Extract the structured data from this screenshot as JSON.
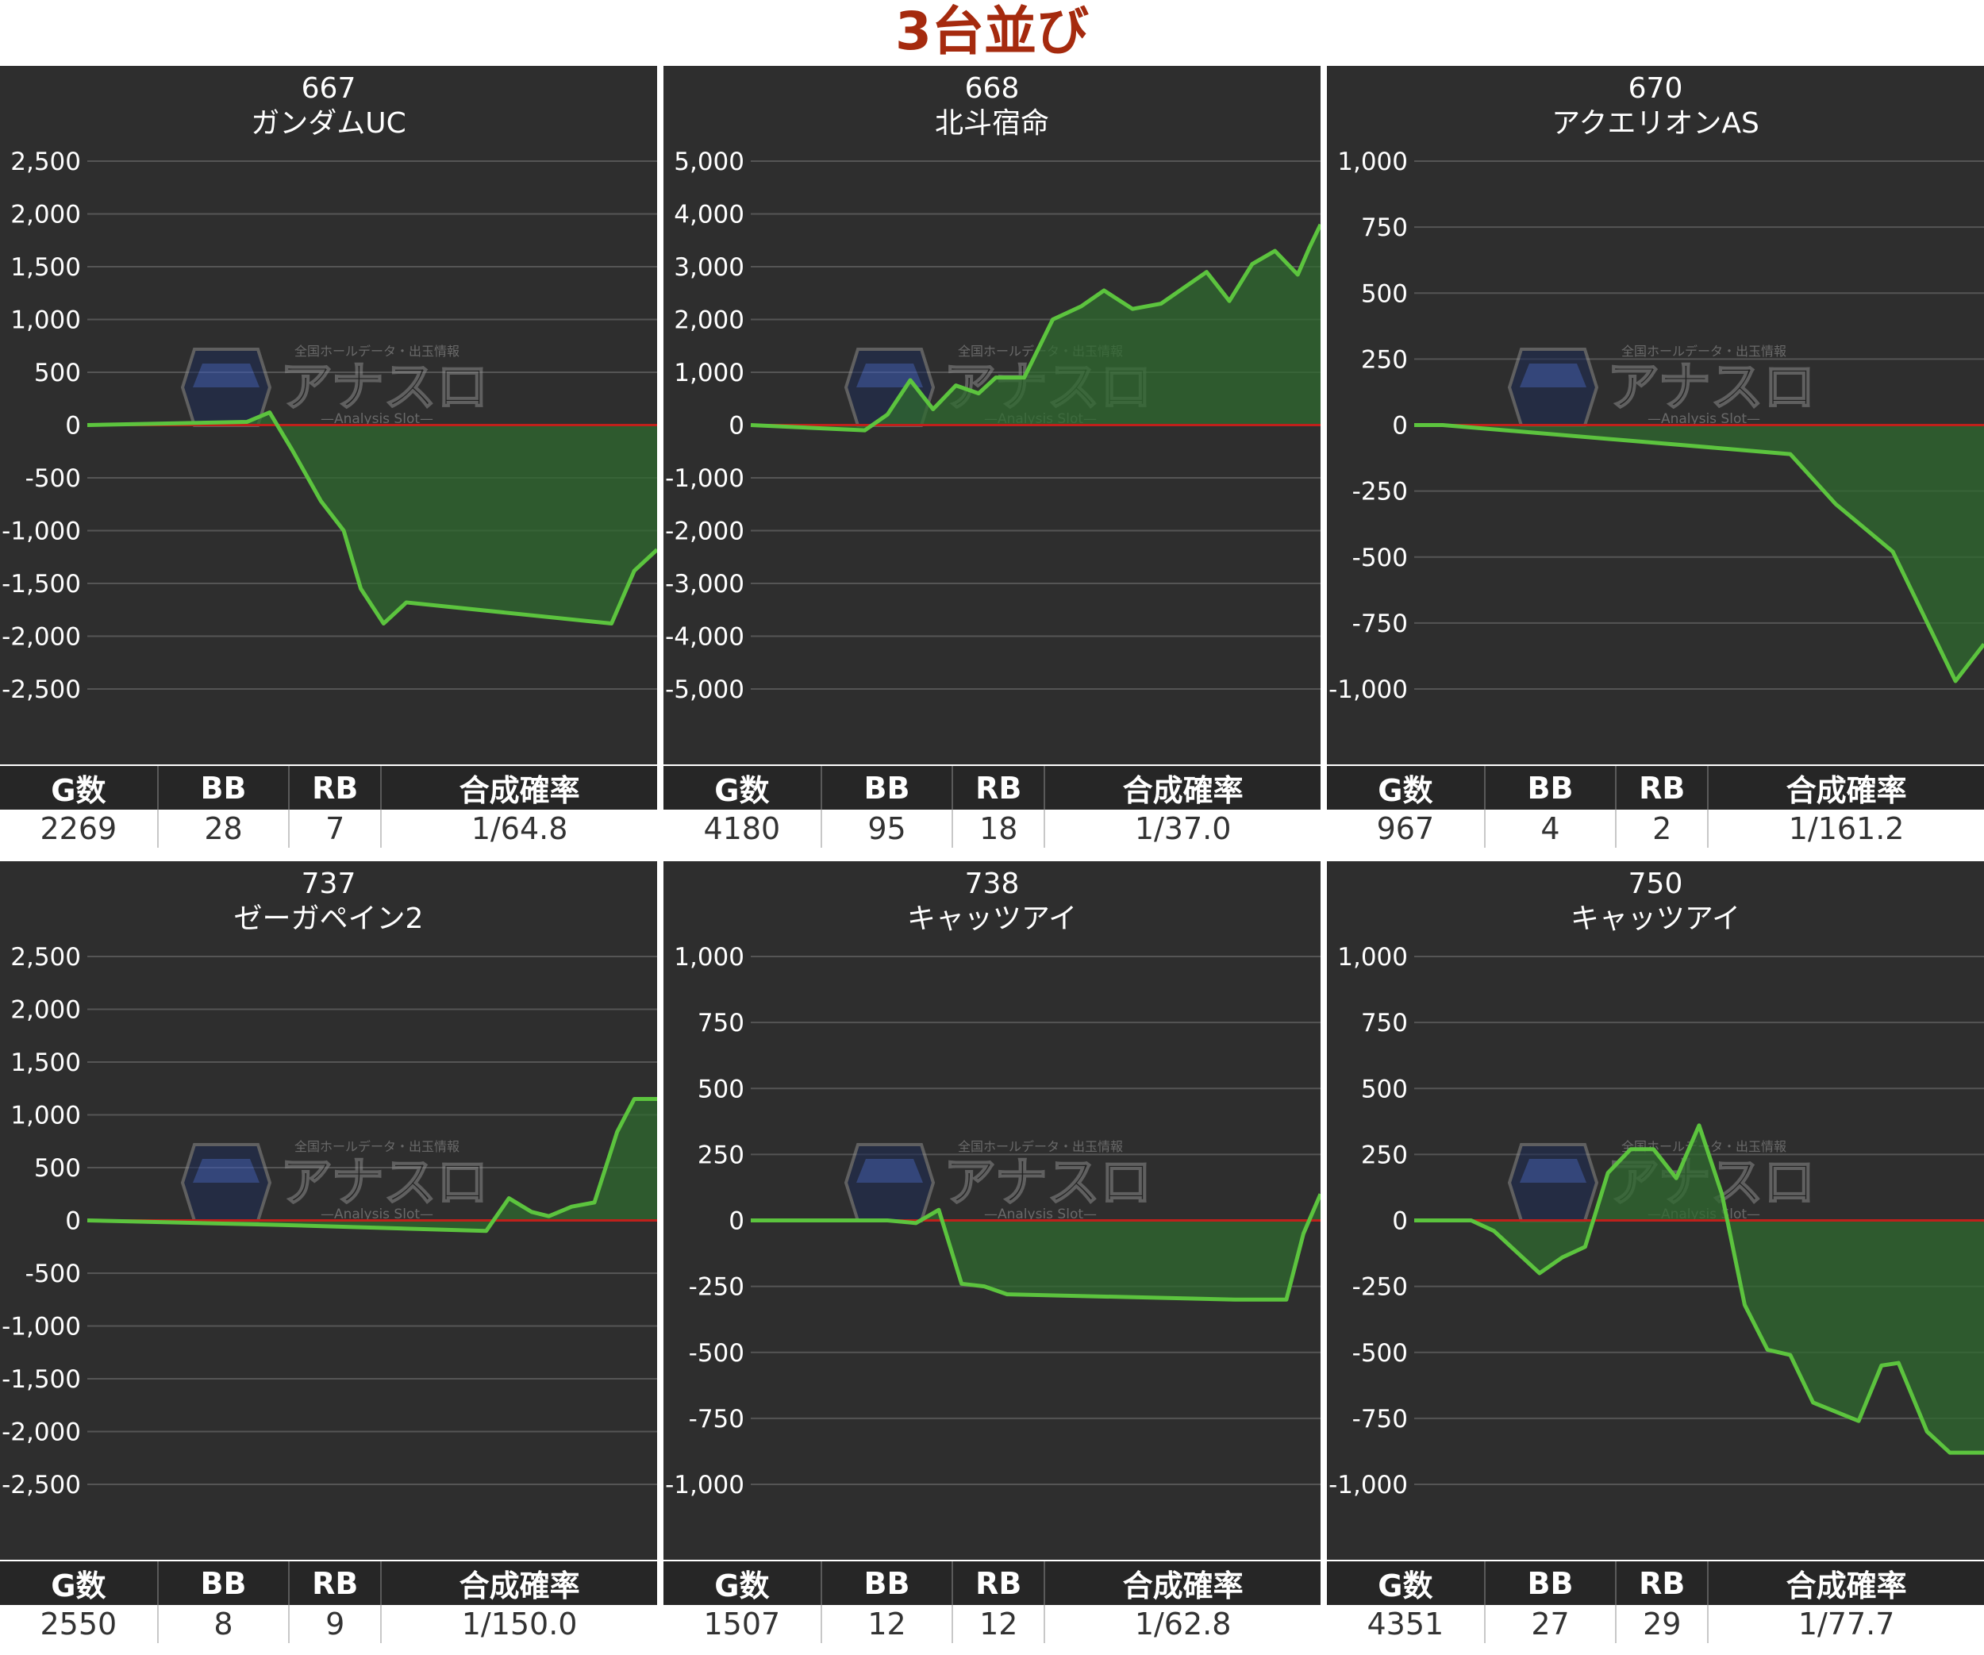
{
  "page": {
    "title": "3台並び"
  },
  "watermark": {
    "brand": "アナスロ",
    "tagline": "全国ホールデータ・出玉情報",
    "sub": "—Analysis Slot—"
  },
  "colors": {
    "background": "#2e2e2e",
    "grid": "#555555",
    "zero_line": "#c0201b",
    "line": "#5cc43e",
    "fill": "#2f6a2f",
    "title": "#a52a0e"
  },
  "table_headers": [
    "G数",
    "BB",
    "RB",
    "合成確率"
  ],
  "chart_data": [
    {
      "type": "area",
      "machine_no": "667",
      "machine_name": "ガンダムUC",
      "ylim": [
        -2500,
        2500
      ],
      "yticks": [
        2500,
        2000,
        1500,
        1000,
        500,
        0,
        -500,
        -1000,
        -1500,
        -2000,
        -2500
      ],
      "tick_labels": [
        "2,500",
        "2,000",
        "1,500",
        "1,000",
        "500",
        "0",
        "-500",
        "-1,000",
        "-1,500",
        "-2,000",
        "-2,500"
      ],
      "grid": true,
      "x": [
        0,
        0.28,
        0.32,
        0.36,
        0.41,
        0.45,
        0.48,
        0.52,
        0.56,
        0.92,
        0.96,
        1.0
      ],
      "y": [
        0,
        30,
        120,
        -240,
        -720,
        -1000,
        -1550,
        -1880,
        -1680,
        -1880,
        -1380,
        -1180
      ],
      "stats": {
        "games": "2269",
        "bb": "28",
        "rb": "7",
        "prob": "1/64.8"
      }
    },
    {
      "type": "area",
      "machine_no": "668",
      "machine_name": "北斗宿命",
      "ylim": [
        -5000,
        5000
      ],
      "yticks": [
        5000,
        4000,
        3000,
        2000,
        1000,
        0,
        -1000,
        -2000,
        -3000,
        -4000,
        -5000
      ],
      "tick_labels": [
        "5,000",
        "4,000",
        "3,000",
        "2,000",
        "1,000",
        "0",
        "-1,000",
        "-2,000",
        "-3,000",
        "-4,000",
        "-5,000"
      ],
      "grid": true,
      "x": [
        0,
        0.2,
        0.24,
        0.28,
        0.32,
        0.36,
        0.4,
        0.43,
        0.48,
        0.53,
        0.58,
        0.62,
        0.67,
        0.72,
        0.76,
        0.8,
        0.84,
        0.88,
        0.92,
        0.96,
        0.98,
        1.0
      ],
      "y": [
        0,
        -100,
        200,
        850,
        300,
        750,
        600,
        900,
        900,
        2000,
        2250,
        2550,
        2200,
        2300,
        2600,
        2900,
        2350,
        3050,
        3300,
        2850,
        3350,
        3800
      ],
      "stats": {
        "games": "4180",
        "bb": "95",
        "rb": "18",
        "prob": "1/37.0"
      }
    },
    {
      "type": "area",
      "machine_no": "670",
      "machine_name": "アクエリオンAS",
      "ylim": [
        -1000,
        1000
      ],
      "yticks": [
        1000,
        750,
        500,
        250,
        0,
        -250,
        -500,
        -750,
        -1000
      ],
      "tick_labels": [
        "1,000",
        "750",
        "500",
        "250",
        "0",
        "-250",
        "-500",
        "-750",
        "-1,000"
      ],
      "grid": true,
      "x": [
        0,
        0.05,
        0.66,
        0.74,
        0.84,
        0.95,
        1.0
      ],
      "y": [
        0,
        0,
        -110,
        -300,
        -480,
        -970,
        -830
      ],
      "stats": {
        "games": "967",
        "bb": "4",
        "rb": "2",
        "prob": "1/161.2"
      }
    },
    {
      "type": "area",
      "machine_no": "737",
      "machine_name": "ゼーガペイン2",
      "ylim": [
        -2500,
        2500
      ],
      "yticks": [
        2500,
        2000,
        1500,
        1000,
        500,
        0,
        -500,
        -1000,
        -1500,
        -2000,
        -2500
      ],
      "tick_labels": [
        "2,500",
        "2,000",
        "1,500",
        "1,000",
        "500",
        "0",
        "-500",
        "-1,000",
        "-1,500",
        "-2,000",
        "-2,500"
      ],
      "grid": true,
      "x": [
        0,
        0.32,
        0.7,
        0.74,
        0.78,
        0.81,
        0.85,
        0.89,
        0.93,
        0.96,
        1.0
      ],
      "y": [
        0,
        -40,
        -100,
        210,
        80,
        40,
        130,
        170,
        840,
        1150,
        1150
      ],
      "stats": {
        "games": "2550",
        "bb": "8",
        "rb": "9",
        "prob": "1/150.0"
      }
    },
    {
      "type": "area",
      "machine_no": "738",
      "machine_name": "キャッツアイ",
      "ylim": [
        -1000,
        1000
      ],
      "yticks": [
        1000,
        750,
        500,
        250,
        0,
        -250,
        -500,
        -750,
        -1000
      ],
      "tick_labels": [
        "1,000",
        "750",
        "500",
        "250",
        "0",
        "-250",
        "-500",
        "-750",
        "-1,000"
      ],
      "grid": true,
      "x": [
        0,
        0.24,
        0.29,
        0.33,
        0.37,
        0.41,
        0.45,
        0.85,
        0.94,
        0.97,
        1.0
      ],
      "y": [
        0,
        0,
        -10,
        40,
        -240,
        -250,
        -280,
        -300,
        -300,
        -50,
        100
      ],
      "stats": {
        "games": "1507",
        "bb": "12",
        "rb": "12",
        "prob": "1/62.8"
      }
    },
    {
      "type": "area",
      "machine_no": "750",
      "machine_name": "キャッツアイ",
      "ylim": [
        -1000,
        1000
      ],
      "yticks": [
        1000,
        750,
        500,
        250,
        0,
        -250,
        -500,
        -750,
        -1000
      ],
      "tick_labels": [
        "1,000",
        "750",
        "500",
        "250",
        "0",
        "-250",
        "-500",
        "-750",
        "-1,000"
      ],
      "grid": true,
      "x": [
        0,
        0.1,
        0.14,
        0.22,
        0.26,
        0.3,
        0.34,
        0.38,
        0.42,
        0.46,
        0.5,
        0.54,
        0.58,
        0.62,
        0.66,
        0.7,
        0.78,
        0.82,
        0.85,
        0.9,
        0.94,
        0.97,
        1.0
      ],
      "y": [
        0,
        0,
        -40,
        -200,
        -140,
        -100,
        180,
        270,
        270,
        160,
        360,
        100,
        -320,
        -490,
        -510,
        -690,
        -760,
        -550,
        -540,
        -800,
        -880,
        -880,
        -880
      ],
      "stats": {
        "games": "4351",
        "bb": "27",
        "rb": "29",
        "prob": "1/77.7"
      }
    }
  ]
}
